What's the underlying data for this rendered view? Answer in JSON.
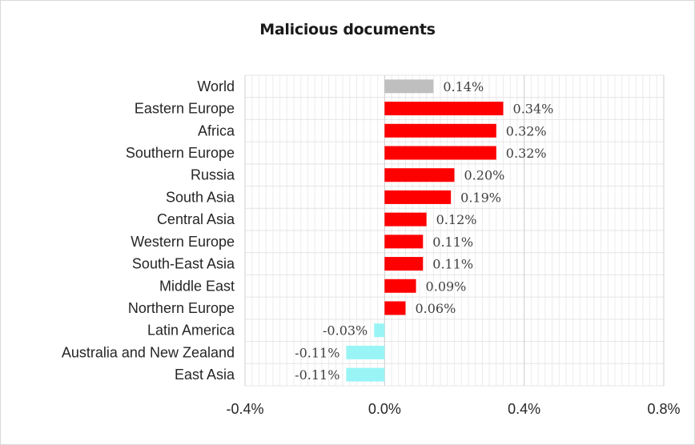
{
  "chart_data": {
    "type": "bar",
    "orientation": "horizontal",
    "title": "Malicious documents",
    "xlabel": "",
    "ylabel": "",
    "xlim": [
      -0.4,
      0.8
    ],
    "x_ticks": [
      "-0.4%",
      "0.0%",
      "0.4%",
      "0.8%"
    ],
    "x_tick_values": [
      -0.4,
      0.0,
      0.4,
      0.8
    ],
    "grid": true,
    "legend": "none",
    "categories": [
      "World",
      "Eastern Europe",
      "Africa",
      "Southern Europe",
      "Russia",
      "South Asia",
      "Central Asia",
      "Western Europe",
      "South-East Asia",
      "Middle East",
      "Northern Europe",
      "Latin America",
      "Australia and New Zealand",
      "East Asia"
    ],
    "values": [
      0.14,
      0.34,
      0.32,
      0.32,
      0.2,
      0.19,
      0.12,
      0.11,
      0.11,
      0.09,
      0.06,
      -0.03,
      -0.11,
      -0.11
    ],
    "data_labels": [
      "0.14%",
      "0.34%",
      "0.32%",
      "0.32%",
      "0.20%",
      "0.19%",
      "0.12%",
      "0.11%",
      "0.11%",
      "0.09%",
      "0.06%",
      "-0.03%",
      "-0.11%",
      "-0.11%"
    ],
    "colors": {
      "world": "#bfbfbf",
      "positive": "#ff0000",
      "negative": "#99f5f5",
      "grid": "#e0e0e0"
    }
  }
}
